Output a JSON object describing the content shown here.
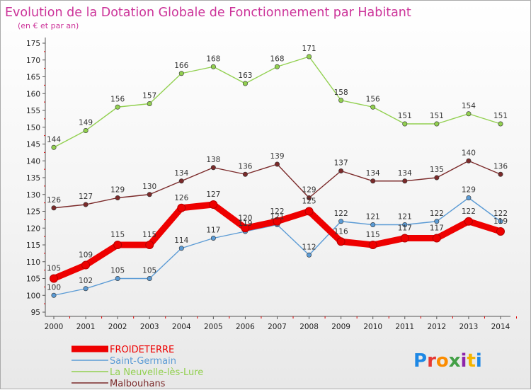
{
  "chart_data": {
    "type": "line",
    "title": "Evolution de la Dotation Globale de Fonctionnement par Habitant",
    "subtitle": "(en € et par an)",
    "x": [
      "2000",
      "2001",
      "2002",
      "2003",
      "2004",
      "2005",
      "2006",
      "2007",
      "2008",
      "2009",
      "2010",
      "2011",
      "2012",
      "2013",
      "2014"
    ],
    "ylim": [
      95,
      175
    ],
    "yticks": [
      95,
      100,
      105,
      110,
      115,
      120,
      125,
      130,
      135,
      140,
      145,
      150,
      155,
      160,
      165,
      170,
      175
    ],
    "grid": false,
    "legend": "bottom-left",
    "series": [
      {
        "name": "FROIDETERRE",
        "color": "#ee0000",
        "values": [
          105,
          109,
          115,
          115,
          126,
          127,
          120,
          122,
          125,
          116,
          115,
          117,
          117,
          122,
          119
        ]
      },
      {
        "name": "Saint-Germain",
        "color": "#5b9bd5",
        "values": [
          100,
          102,
          105,
          105,
          114,
          117,
          119,
          121,
          112,
          122,
          121,
          121,
          122,
          129,
          122
        ]
      },
      {
        "name": "La Neuvelle-lès-Lure",
        "color": "#92d050",
        "values": [
          144,
          149,
          156,
          157,
          166,
          168,
          163,
          168,
          171,
          158,
          156,
          151,
          151,
          154,
          151
        ]
      },
      {
        "name": "Malbouhans",
        "color": "#7b2a2a",
        "values": [
          126,
          127,
          129,
          130,
          134,
          138,
          136,
          139,
          129,
          137,
          134,
          134,
          135,
          140,
          136
        ]
      }
    ]
  },
  "colors": {
    "title": "#cc3399",
    "axis": "#555555"
  },
  "logo": {
    "text": "Proxiti"
  }
}
